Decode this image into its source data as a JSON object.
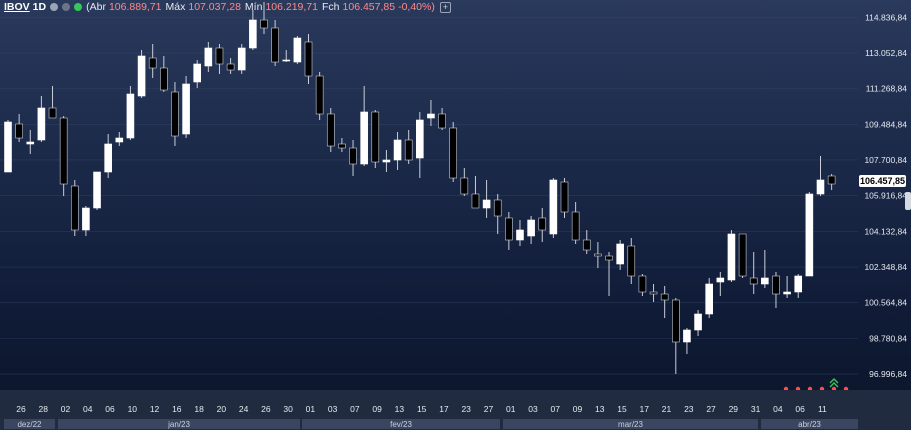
{
  "header": {
    "symbol": "IBOV",
    "timeframe": "1D",
    "open_label": "(Abr",
    "open_value": "106.889,71",
    "high_label": "Máx",
    "high_value": "107.037,28",
    "low_label": "Mín",
    "low_value": "106.219,71",
    "close_label": "Fch",
    "close_value": "106.457,85",
    "change_value": "-0,40%)"
  },
  "colors": {
    "up": "#ffffff",
    "down": "#000000",
    "wick": "#c9ced8",
    "signal_dot": "#ff4d4d",
    "signal_arrow": "#34c759"
  },
  "price_badge": "106.457,85",
  "chart_data": {
    "type": "candlestick",
    "title": "",
    "ylim": [
      96200,
      115700
    ],
    "y_ticks": [
      114836.84,
      113052.84,
      111268.84,
      109484.84,
      107700.84,
      105916.84,
      104132.84,
      102348.84,
      100564.84,
      98780.84,
      96996.84
    ],
    "y_tick_labels": [
      "114.836,84",
      "113.052,84",
      "111.268,84",
      "109.484,84",
      "107.700,84",
      "105.916,84",
      "104.132,84",
      "102.348,84",
      "100.564,84",
      "98.780,84",
      "96.996,84"
    ],
    "x_tick_labels": [
      "26",
      "28",
      "02",
      "04",
      "06",
      "10",
      "12",
      "16",
      "18",
      "20",
      "24",
      "26",
      "30",
      "01",
      "03",
      "07",
      "09",
      "13",
      "15",
      "17",
      "23",
      "27",
      "01",
      "03",
      "07",
      "09",
      "13",
      "15",
      "17",
      "21",
      "23",
      "27",
      "29",
      "31",
      "04",
      "06",
      "11"
    ],
    "month_labels": [
      "dez/22",
      "jan/23",
      "fev/23",
      "mar/23",
      "abr/23"
    ],
    "candles": [
      {
        "o": 107100,
        "h": 109700,
        "l": 107100,
        "c": 109600
      },
      {
        "o": 109500,
        "h": 110000,
        "l": 108600,
        "c": 108800
      },
      {
        "o": 108500,
        "h": 109200,
        "l": 108000,
        "c": 108600
      },
      {
        "o": 108700,
        "h": 110900,
        "l": 108600,
        "c": 110300
      },
      {
        "o": 110300,
        "h": 111400,
        "l": 109800,
        "c": 109800
      },
      {
        "o": 109800,
        "h": 109900,
        "l": 105900,
        "c": 106500
      },
      {
        "o": 106400,
        "h": 106700,
        "l": 103900,
        "c": 104200
      },
      {
        "o": 104200,
        "h": 105400,
        "l": 103900,
        "c": 105300
      },
      {
        "o": 105300,
        "h": 107100,
        "l": 105200,
        "c": 107100
      },
      {
        "o": 107100,
        "h": 109000,
        "l": 106800,
        "c": 108500
      },
      {
        "o": 108600,
        "h": 109100,
        "l": 108400,
        "c": 108800
      },
      {
        "o": 108800,
        "h": 111400,
        "l": 108700,
        "c": 111000
      },
      {
        "o": 110900,
        "h": 113200,
        "l": 110800,
        "c": 112900
      },
      {
        "o": 112800,
        "h": 113500,
        "l": 111800,
        "c": 112300
      },
      {
        "o": 112300,
        "h": 112900,
        "l": 111100,
        "c": 111200
      },
      {
        "o": 111100,
        "h": 111600,
        "l": 108400,
        "c": 108900
      },
      {
        "o": 109000,
        "h": 111900,
        "l": 108800,
        "c": 111500
      },
      {
        "o": 111600,
        "h": 112700,
        "l": 111300,
        "c": 112500
      },
      {
        "o": 112400,
        "h": 113600,
        "l": 112100,
        "c": 113300
      },
      {
        "o": 113300,
        "h": 113500,
        "l": 112000,
        "c": 112500
      },
      {
        "o": 112500,
        "h": 112800,
        "l": 112000,
        "c": 112200
      },
      {
        "o": 112200,
        "h": 113500,
        "l": 112000,
        "c": 113300
      },
      {
        "o": 113300,
        "h": 115200,
        "l": 113200,
        "c": 114700
      },
      {
        "o": 114700,
        "h": 115600,
        "l": 114000,
        "c": 114300
      },
      {
        "o": 114300,
        "h": 114700,
        "l": 112400,
        "c": 112600
      },
      {
        "o": 112700,
        "h": 113200,
        "l": 112600,
        "c": 112700
      },
      {
        "o": 112600,
        "h": 113900,
        "l": 112500,
        "c": 113800
      },
      {
        "o": 113600,
        "h": 114000,
        "l": 111500,
        "c": 111900
      },
      {
        "o": 111900,
        "h": 112100,
        "l": 109700,
        "c": 110000
      },
      {
        "o": 110000,
        "h": 110300,
        "l": 108100,
        "c": 108400
      },
      {
        "o": 108500,
        "h": 108800,
        "l": 108100,
        "c": 108300
      },
      {
        "o": 108300,
        "h": 108700,
        "l": 106900,
        "c": 107500
      },
      {
        "o": 107500,
        "h": 111400,
        "l": 107400,
        "c": 110100
      },
      {
        "o": 110100,
        "h": 110200,
        "l": 107300,
        "c": 107600
      },
      {
        "o": 107600,
        "h": 108200,
        "l": 107100,
        "c": 107700
      },
      {
        "o": 107700,
        "h": 109100,
        "l": 107200,
        "c": 108700
      },
      {
        "o": 108700,
        "h": 109200,
        "l": 107500,
        "c": 107700
      },
      {
        "o": 107800,
        "h": 110100,
        "l": 106800,
        "c": 109700
      },
      {
        "o": 109800,
        "h": 110700,
        "l": 109400,
        "c": 110000
      },
      {
        "o": 110000,
        "h": 110300,
        "l": 109200,
        "c": 109300
      },
      {
        "o": 109300,
        "h": 109600,
        "l": 106600,
        "c": 106800
      },
      {
        "o": 106800,
        "h": 107300,
        "l": 105900,
        "c": 106000
      },
      {
        "o": 106000,
        "h": 106900,
        "l": 105400,
        "c": 105300
      },
      {
        "o": 105300,
        "h": 106700,
        "l": 104800,
        "c": 105700
      },
      {
        "o": 105700,
        "h": 106000,
        "l": 104000,
        "c": 104900
      },
      {
        "o": 104800,
        "h": 105100,
        "l": 103200,
        "c": 103700
      },
      {
        "o": 103700,
        "h": 104700,
        "l": 103400,
        "c": 104200
      },
      {
        "o": 103900,
        "h": 104900,
        "l": 103500,
        "c": 104700
      },
      {
        "o": 104800,
        "h": 105300,
        "l": 103600,
        "c": 104200
      },
      {
        "o": 104000,
        "h": 106800,
        "l": 103800,
        "c": 106700
      },
      {
        "o": 106600,
        "h": 106800,
        "l": 104800,
        "c": 105100
      },
      {
        "o": 105100,
        "h": 105600,
        "l": 103500,
        "c": 103700
      },
      {
        "o": 103700,
        "h": 104200,
        "l": 103000,
        "c": 103200
      },
      {
        "o": 103000,
        "h": 103600,
        "l": 102300,
        "c": 102900
      },
      {
        "o": 102900,
        "h": 103100,
        "l": 100900,
        "c": 102700
      },
      {
        "o": 102500,
        "h": 103700,
        "l": 102200,
        "c": 103500
      },
      {
        "o": 103400,
        "h": 103800,
        "l": 101500,
        "c": 101900
      },
      {
        "o": 101900,
        "h": 102000,
        "l": 100900,
        "c": 101100
      },
      {
        "o": 101100,
        "h": 101500,
        "l": 100600,
        "c": 101000
      },
      {
        "o": 101000,
        "h": 101400,
        "l": 99800,
        "c": 100700
      },
      {
        "o": 100700,
        "h": 100800,
        "l": 97000,
        "c": 98600
      },
      {
        "o": 98600,
        "h": 99300,
        "l": 98000,
        "c": 99200
      },
      {
        "o": 99200,
        "h": 100200,
        "l": 98900,
        "c": 100000
      },
      {
        "o": 100000,
        "h": 101800,
        "l": 99800,
        "c": 101500
      },
      {
        "o": 101600,
        "h": 102100,
        "l": 100900,
        "c": 101800
      },
      {
        "o": 101700,
        "h": 104200,
        "l": 101600,
        "c": 104000
      },
      {
        "o": 104000,
        "h": 104000,
        "l": 101800,
        "c": 101900
      },
      {
        "o": 101800,
        "h": 103100,
        "l": 101000,
        "c": 101500
      },
      {
        "o": 101500,
        "h": 103200,
        "l": 101300,
        "c": 101800
      },
      {
        "o": 101900,
        "h": 102100,
        "l": 100300,
        "c": 101000
      },
      {
        "o": 101000,
        "h": 101900,
        "l": 100800,
        "c": 101100
      },
      {
        "o": 101100,
        "h": 102000,
        "l": 100800,
        "c": 101900
      },
      {
        "o": 101900,
        "h": 106100,
        "l": 101900,
        "c": 106000
      },
      {
        "o": 106000,
        "h": 107900,
        "l": 105900,
        "c": 106700
      },
      {
        "o": 106900,
        "h": 107000,
        "l": 106200,
        "c": 106500
      }
    ]
  }
}
